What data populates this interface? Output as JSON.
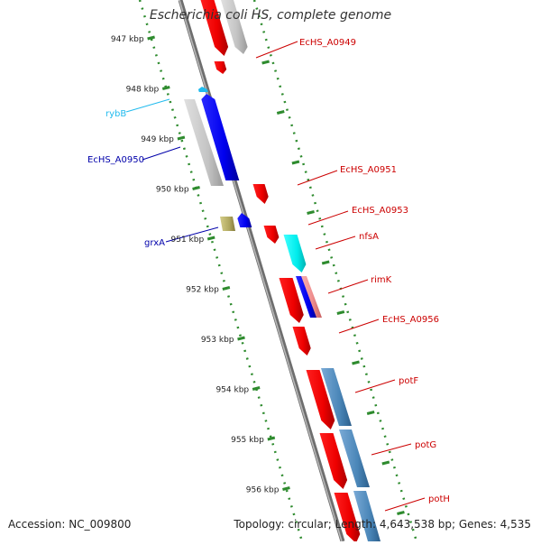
{
  "title": "Escherichia coli HS, complete genome",
  "accession": "Accession: NC_009800",
  "stats": "Topology: circular; Length: 4,643,538 bp; Genes: 4,535",
  "colors": {
    "backbone": "#8a8a8a",
    "ticks": "#2e8b2e",
    "red_gene": "#ff0000",
    "blue_gene": "#0000ff",
    "cyan_gene": "#00e0e0",
    "gray_gene": "#c8c8c8",
    "olive_gene": "#b0a860",
    "steel_gene": "#4a86b8",
    "pink_gene": "#f09090",
    "label_red": "#cc0000",
    "label_blue": "#0000aa",
    "label_cyan": "#22bbee"
  },
  "kbp_labels": [
    "947 kbp",
    "948 kbp",
    "949 kbp",
    "950 kbp",
    "951 kbp",
    "952 kbp",
    "953 kbp",
    "954 kbp",
    "955 kbp",
    "956 kbp"
  ],
  "gene_labels": [
    {
      "text": "EcHS_A0949",
      "color": "label_red"
    },
    {
      "text": "rybB",
      "color": "label_cyan"
    },
    {
      "text": "EcHS_A0950",
      "color": "label_blue"
    },
    {
      "text": "EcHS_A0951",
      "color": "label_red"
    },
    {
      "text": "EcHS_A0953",
      "color": "label_red"
    },
    {
      "text": "grxA",
      "color": "label_blue"
    },
    {
      "text": "nfsA",
      "color": "label_red"
    },
    {
      "text": "rimK",
      "color": "label_red"
    },
    {
      "text": "EcHS_A0956",
      "color": "label_red"
    },
    {
      "text": "potF",
      "color": "label_red"
    },
    {
      "text": "potG",
      "color": "label_red"
    },
    {
      "text": "potH",
      "color": "label_red"
    }
  ]
}
